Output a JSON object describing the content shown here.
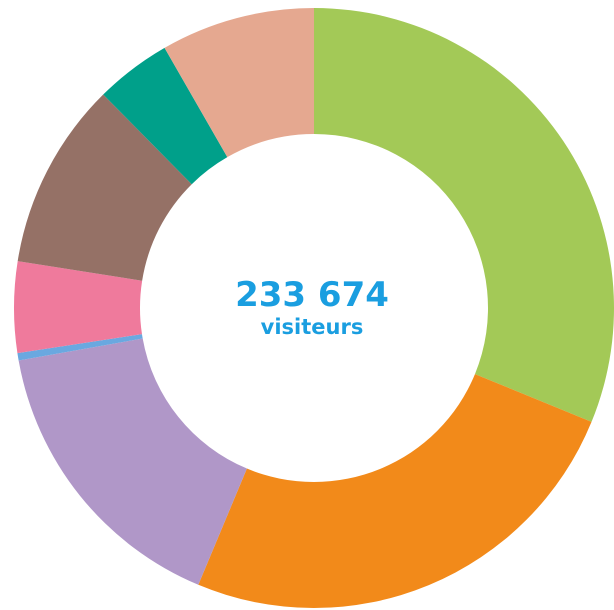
{
  "chart_data": {
    "type": "donut",
    "title": "233 674",
    "subtitle": "visiteurs",
    "values": [
      31.2,
      25.1,
      15.9,
      0.4,
      4.9,
      10.1,
      4.1,
      8.3
    ],
    "colors": [
      "#a3c957",
      "#f28a1a",
      "#b097c8",
      "#6aa8e0",
      "#ef7a9c",
      "#957166",
      "#00a08a",
      "#e5a890"
    ]
  }
}
